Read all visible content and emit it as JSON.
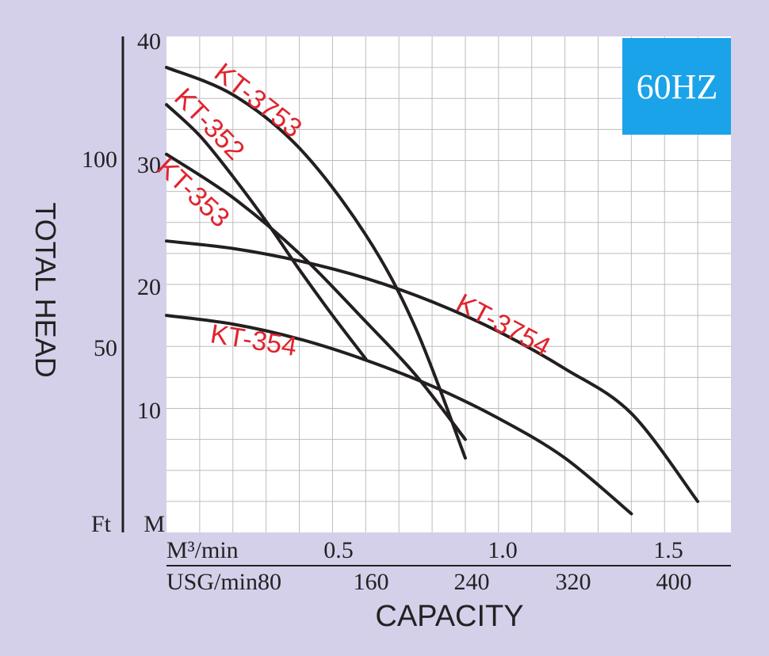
{
  "chart_data": {
    "type": "line",
    "badge": "60HZ",
    "ylabel": "TOTAL HEAD",
    "xlabel": "CAPACITY",
    "y_unit_m": "M",
    "y_unit_ft": "Ft",
    "x_unit_m3": "M³/min",
    "x_unit_usg": "USG/min",
    "ylim_m": [
      0,
      40
    ],
    "xlim_m3": [
      0,
      1.7
    ],
    "y_ticks_m": [
      "10",
      "20",
      "30",
      "40"
    ],
    "y_ticks_ft": [
      "50",
      "100"
    ],
    "x_ticks_m3": [
      "0.5",
      "1.0",
      "1.5"
    ],
    "x_ticks_usg": [
      "80",
      "160",
      "240",
      "320",
      "400"
    ],
    "colors": {
      "curve": "#231f20",
      "label": "#e0242e",
      "badge": "#1aa3e8",
      "grid": "#bdbdbd"
    },
    "series": [
      {
        "name": "KT-3753",
        "x": [
          0,
          0.2,
          0.4,
          0.6,
          0.75,
          0.9
        ],
        "y": [
          37.5,
          35.3,
          31.0,
          24.0,
          16.5,
          6.0
        ]
      },
      {
        "name": "KT-352",
        "x": [
          0,
          0.1,
          0.2,
          0.3,
          0.4,
          0.5,
          0.6
        ],
        "y": [
          34.5,
          32.0,
          28.7,
          25.1,
          21.2,
          17.5,
          14.0
        ]
      },
      {
        "name": "KT-353",
        "x": [
          0,
          0.2,
          0.4,
          0.6,
          0.75,
          0.9
        ],
        "y": [
          30.5,
          27.0,
          22.5,
          17.0,
          12.7,
          7.5
        ]
      },
      {
        "name": "KT-3754",
        "x": [
          0,
          0.2,
          0.4,
          0.6,
          0.8,
          1.0,
          1.2,
          1.4,
          1.6
        ],
        "y": [
          23.5,
          22.9,
          21.9,
          20.5,
          18.6,
          16.2,
          13.2,
          9.6,
          2.5
        ]
      },
      {
        "name": "KT-354",
        "x": [
          0,
          0.2,
          0.4,
          0.6,
          0.8,
          1.0,
          1.2,
          1.4
        ],
        "y": [
          17.5,
          16.8,
          15.6,
          13.9,
          11.8,
          9.2,
          6.0,
          1.5
        ]
      }
    ]
  }
}
